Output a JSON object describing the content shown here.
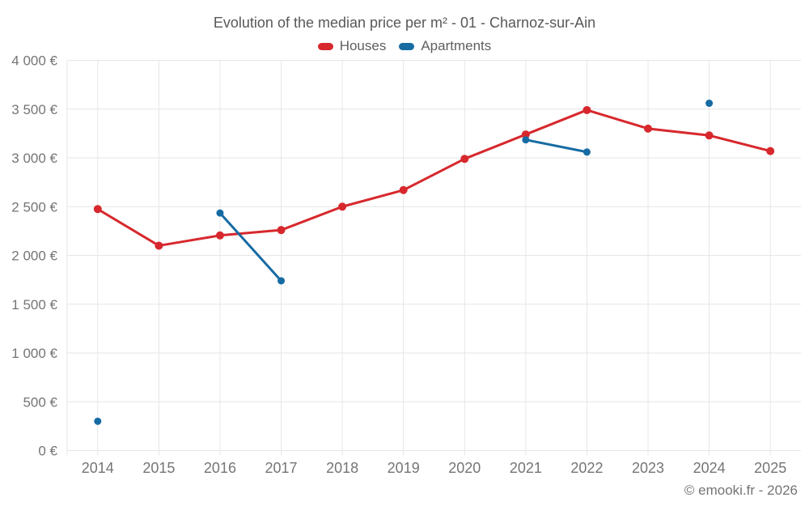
{
  "title": "Evolution of the median price per m² - 01 - Charnoz-sur-Ain",
  "footer": "© emooki.fr - 2026",
  "colors": {
    "houses": "#d7282d",
    "apartments": "#176ba3",
    "grid": "#e6e6e6",
    "axis_text": "#757575",
    "title_text": "#57585a",
    "background": "#ffffff"
  },
  "chart_data": {
    "type": "line",
    "title": "Evolution of the median price per m² - 01 - Charnoz-sur-Ain",
    "xlabel": "",
    "ylabel": "",
    "categories": [
      "2014",
      "2015",
      "2016",
      "2017",
      "2018",
      "2019",
      "2020",
      "2021",
      "2022",
      "2023",
      "2024",
      "2025"
    ],
    "series": [
      {
        "name": "Houses",
        "color": "#d7282d",
        "point_radius": 5,
        "values": [
          2475,
          2100,
          2205,
          2260,
          2500,
          2670,
          2990,
          3240,
          3490,
          3300,
          3230,
          3070
        ]
      },
      {
        "name": "Apartments",
        "color": "#176ba3",
        "point_radius": 4.5,
        "values": [
          300,
          null,
          2435,
          1740,
          null,
          null,
          null,
          3185,
          3060,
          null,
          3560,
          null
        ]
      }
    ],
    "ylim": [
      0,
      4000
    ],
    "y_tick_step": 500,
    "y_tick_labels": [
      "0 €",
      "500 €",
      "1 000 €",
      "1 500 €",
      "2 000 €",
      "2 500 €",
      "3 000 €",
      "3 500 €",
      "4 000 €"
    ],
    "grid": true,
    "legend_position": "top-center"
  }
}
